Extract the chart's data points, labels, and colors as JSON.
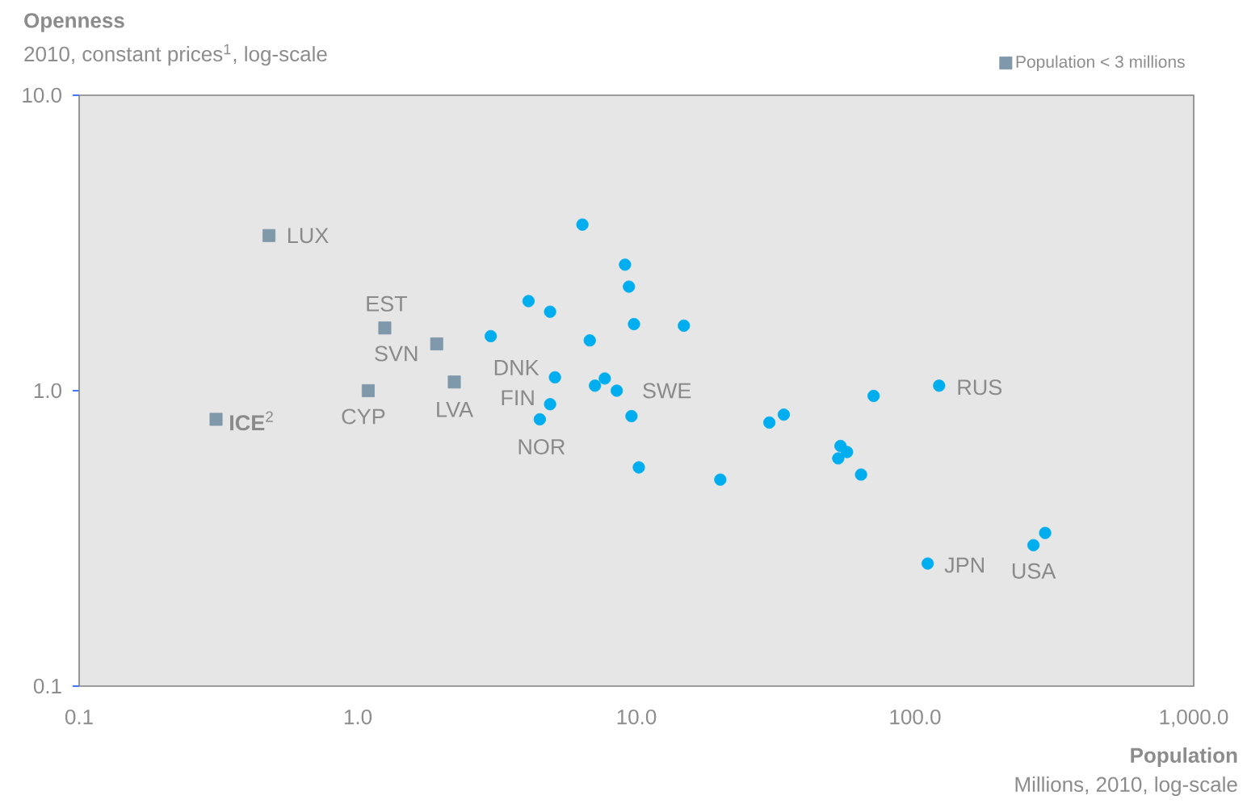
{
  "chart_data": {
    "type": "scatter",
    "title": "Openness",
    "subtitle": "2010, constant prices$^{1}$, log-scale",
    "xlabel": "Population",
    "log": "xy",
    "legend": "top right",
    "grid": false,
    "xlim": [
      0.1,
      1000
    ],
    "ylim": [
      0.1,
      10
    ],
    "xticks": [
      0.1,
      {
        "value": 1,
        "label": "1.0"
      },
      {
        "value": 10,
        "label": "10.0"
      },
      {
        "value": 100,
        "label": "100.0"
      },
      {
        "value": 1000,
        "label": "1,000.0"
      }
    ],
    "yticks": [
      0.1,
      {
        "value": 1,
        "label": "1.0"
      },
      {
        "value": 10,
        "label": "10.0"
      }
    ],
    "series": [
      {
        "name": "Population < 3 millions",
        "color": "#7f98aa",
        "marker": "square",
        "x": [
          0.48,
          1.25,
          1.92,
          1.09,
          2.22,
          0.31
        ],
        "values": [
          3.35,
          1.63,
          1.44,
          1.0,
          1.07,
          0.8
        ]
      },
      {
        "color": "#00aeef",
        "marker": "circle",
        "x": [
          6.4,
          9.1,
          9.4,
          4.1,
          4.9,
          9.8,
          14.8,
          3.0,
          6.8,
          5.1,
          7.7,
          7.1,
          8.5,
          4.9,
          4.5,
          9.6,
          10.2,
          20,
          30,
          33.8,
          71,
          122,
          54,
          57,
          53,
          64,
          111,
          266,
          293
        ],
        "values": [
          3.65,
          2.67,
          2.25,
          2.01,
          1.85,
          1.68,
          1.66,
          1.53,
          1.48,
          1.11,
          1.1,
          1.04,
          1.0,
          0.9,
          0.8,
          0.82,
          0.55,
          0.5,
          0.78,
          0.83,
          0.96,
          1.04,
          0.65,
          0.62,
          0.59,
          0.52,
          0.26,
          0.3,
          0.33
        ]
      }
    ],
    "annotations": [
      {
        "text": "LUX",
        "x": 0.48,
        "y": 3.35
      },
      {
        "text": "EST",
        "x": 1.25,
        "y": 1.63
      },
      {
        "text": "SVN",
        "x": 1.92,
        "y": 1.44
      },
      {
        "text": "CYP",
        "x": 1.09,
        "y": 1.0
      },
      {
        "text": "LVA",
        "x": 2.22,
        "y": 1.07
      },
      {
        "text": "**ICE**$^{2}$",
        "x": 0.31,
        "y": 0.8
      },
      {
        "text": "DNK",
        "x": 5.1,
        "y": 1.11
      },
      {
        "text": "FIN",
        "x": 4.9,
        "y": 0.9
      },
      {
        "text": "NOR",
        "x": 4.5,
        "y": 0.8
      },
      {
        "text": "SWE",
        "x": 8.5,
        "y": 1.0
      },
      {
        "text": "RUS",
        "x": 122,
        "y": 1.04
      },
      {
        "text": "JPN",
        "x": 111,
        "y": 0.26
      },
      {
        "text": "USA",
        "x": 266,
        "y": 0.3
      },
      "Millions, 2010, log-scale"
    ]
  }
}
